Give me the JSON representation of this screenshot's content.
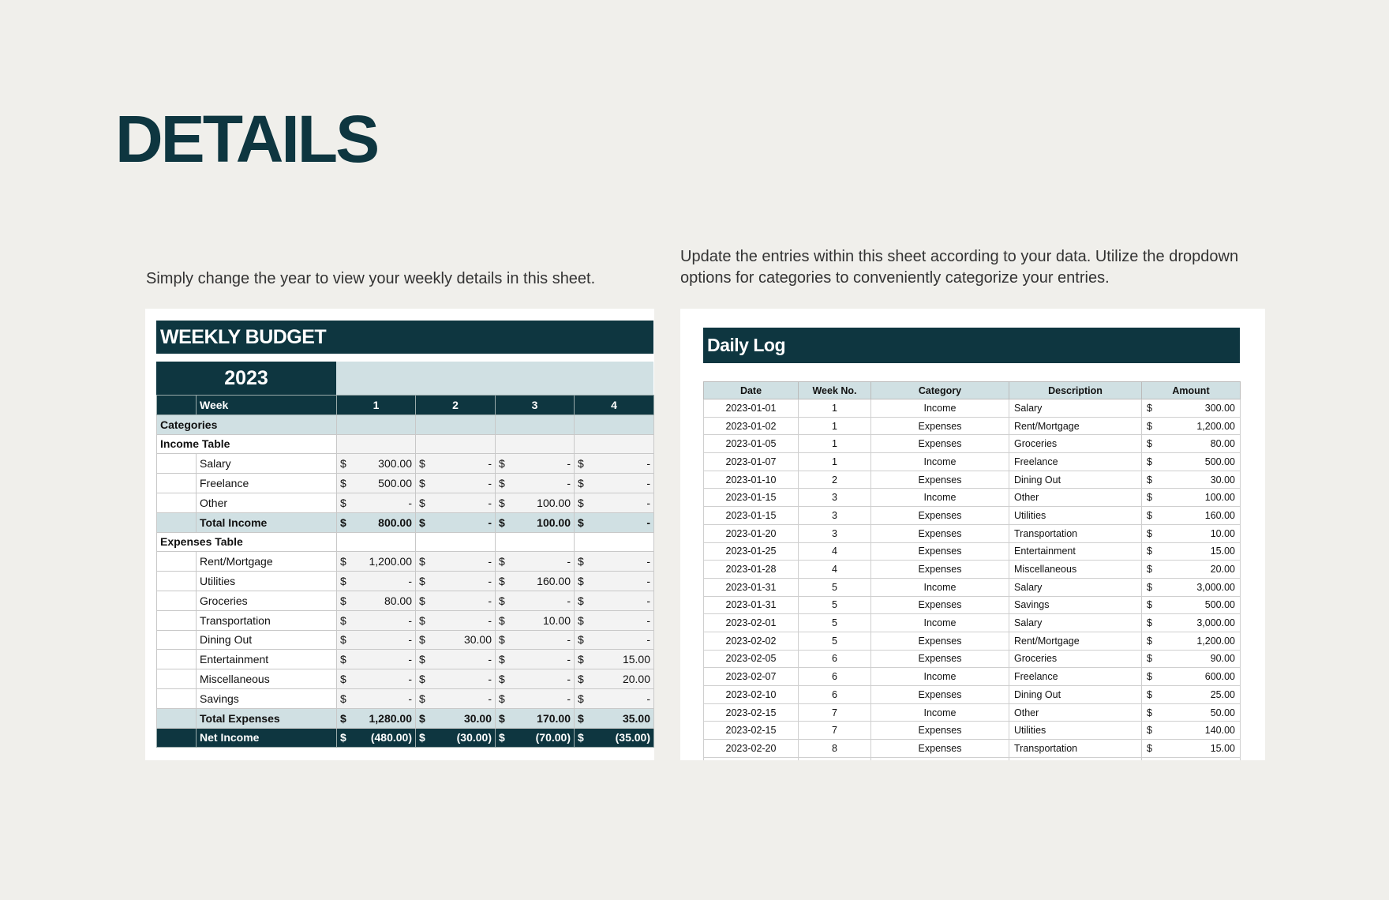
{
  "page": {
    "title": "DETAILS",
    "caption_left": "Simply change the year to view your weekly details in this sheet.",
    "caption_right": "Update the entries within this sheet according to your data. Utilize the dropdown options for categories to conveniently categorize your entries."
  },
  "colors": {
    "dark": "#0e3640",
    "light": "#d0e0e3",
    "background": "#f0efeb"
  },
  "weekly_budget": {
    "title": "WEEKLY BUDGET",
    "year": "2023",
    "week_label": "Week",
    "weeks": [
      "1",
      "2",
      "3",
      "4"
    ],
    "categories_label": "Categories",
    "income_label": "Income Table",
    "expenses_label": "Expenses Table",
    "income": [
      {
        "name": "Salary",
        "values": [
          "300.00",
          "-",
          "-",
          "-"
        ]
      },
      {
        "name": "Freelance",
        "values": [
          "500.00",
          "-",
          "-",
          "-"
        ]
      },
      {
        "name": "Other",
        "values": [
          "-",
          "-",
          "100.00",
          "-"
        ]
      }
    ],
    "total_income": {
      "name": "Total Income",
      "values": [
        "800.00",
        "-",
        "100.00",
        "-"
      ]
    },
    "expenses": [
      {
        "name": "Rent/Mortgage",
        "values": [
          "1,200.00",
          "-",
          "-",
          "-"
        ]
      },
      {
        "name": "Utilities",
        "values": [
          "-",
          "-",
          "160.00",
          "-"
        ]
      },
      {
        "name": "Groceries",
        "values": [
          "80.00",
          "-",
          "-",
          "-"
        ]
      },
      {
        "name": "Transportation",
        "values": [
          "-",
          "-",
          "10.00",
          "-"
        ]
      },
      {
        "name": "Dining Out",
        "values": [
          "-",
          "30.00",
          "-",
          "-"
        ]
      },
      {
        "name": "Entertainment",
        "values": [
          "-",
          "-",
          "-",
          "15.00"
        ]
      },
      {
        "name": "Miscellaneous",
        "values": [
          "-",
          "-",
          "-",
          "20.00"
        ]
      },
      {
        "name": "Savings",
        "values": [
          "-",
          "-",
          "-",
          "-"
        ]
      }
    ],
    "total_expenses": {
      "name": "Total Expenses",
      "values": [
        "1,280.00",
        "30.00",
        "170.00",
        "35.00"
      ]
    },
    "net_income": {
      "name": "Net Income",
      "values": [
        "(480.00)",
        "(30.00)",
        "(70.00)",
        "(35.00)"
      ]
    },
    "currency": "$"
  },
  "daily_log": {
    "title": "Daily Log",
    "columns": [
      "Date",
      "Week No.",
      "Category",
      "Description",
      "Amount"
    ],
    "currency": "$",
    "rows": [
      [
        "2023-01-01",
        "1",
        "Income",
        "Salary",
        "300.00"
      ],
      [
        "2023-01-02",
        "1",
        "Expenses",
        "Rent/Mortgage",
        "1,200.00"
      ],
      [
        "2023-01-05",
        "1",
        "Expenses",
        "Groceries",
        "80.00"
      ],
      [
        "2023-01-07",
        "1",
        "Income",
        "Freelance",
        "500.00"
      ],
      [
        "2023-01-10",
        "2",
        "Expenses",
        "Dining Out",
        "30.00"
      ],
      [
        "2023-01-15",
        "3",
        "Income",
        "Other",
        "100.00"
      ],
      [
        "2023-01-15",
        "3",
        "Expenses",
        "Utilities",
        "160.00"
      ],
      [
        "2023-01-20",
        "3",
        "Expenses",
        "Transportation",
        "10.00"
      ],
      [
        "2023-01-25",
        "4",
        "Expenses",
        "Entertainment",
        "15.00"
      ],
      [
        "2023-01-28",
        "4",
        "Expenses",
        "Miscellaneous",
        "20.00"
      ],
      [
        "2023-01-31",
        "5",
        "Income",
        "Salary",
        "3,000.00"
      ],
      [
        "2023-01-31",
        "5",
        "Expenses",
        "Savings",
        "500.00"
      ],
      [
        "2023-02-01",
        "5",
        "Income",
        "Salary",
        "3,000.00"
      ],
      [
        "2023-02-02",
        "5",
        "Expenses",
        "Rent/Mortgage",
        "1,200.00"
      ],
      [
        "2023-02-05",
        "6",
        "Expenses",
        "Groceries",
        "90.00"
      ],
      [
        "2023-02-07",
        "6",
        "Income",
        "Freelance",
        "600.00"
      ],
      [
        "2023-02-10",
        "6",
        "Expenses",
        "Dining Out",
        "25.00"
      ],
      [
        "2023-02-15",
        "7",
        "Income",
        "Other",
        "50.00"
      ],
      [
        "2023-02-15",
        "7",
        "Expenses",
        "Utilities",
        "140.00"
      ],
      [
        "2023-02-20",
        "8",
        "Expenses",
        "Transportation",
        "15.00"
      ]
    ]
  }
}
